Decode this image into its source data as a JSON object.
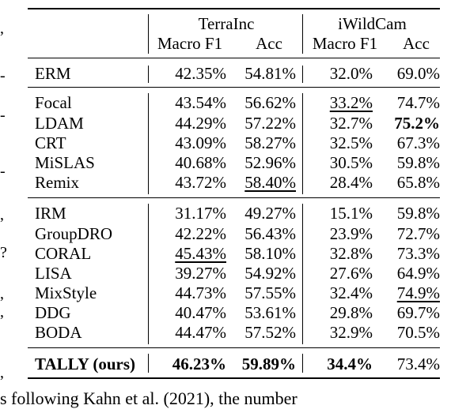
{
  "header": {
    "group1": "TerraInc",
    "group2": "iWildCam",
    "col1": "Macro F1",
    "col2": "Acc",
    "col3": "Macro F1",
    "col4": "Acc"
  },
  "rows": [
    {
      "name": "ERM",
      "v1": "42.35%",
      "v2": "54.81%",
      "v3": "32.0%",
      "v4": "69.0%"
    },
    {
      "name": "Focal",
      "v1": "43.54%",
      "v2": "56.62%",
      "v3": "33.2%",
      "v4": "74.7%"
    },
    {
      "name": "LDAM",
      "v1": "44.29%",
      "v2": "57.22%",
      "v3": "32.7%",
      "v4": "75.2%"
    },
    {
      "name": "CRT",
      "v1": "43.09%",
      "v2": "58.27%",
      "v3": "32.5%",
      "v4": "67.3%"
    },
    {
      "name": "MiSLAS",
      "v1": "40.68%",
      "v2": "52.96%",
      "v3": "30.5%",
      "v4": "59.8%"
    },
    {
      "name": "Remix",
      "v1": "43.72%",
      "v2": "58.40%",
      "v3": "28.4%",
      "v4": "65.8%"
    },
    {
      "name": "IRM",
      "v1": "31.17%",
      "v2": "49.27%",
      "v3": "15.1%",
      "v4": "59.8%"
    },
    {
      "name": "GroupDRO",
      "v1": "42.22%",
      "v2": "56.43%",
      "v3": "23.9%",
      "v4": "72.7%"
    },
    {
      "name": "CORAL",
      "v1": "45.43%",
      "v2": "58.10%",
      "v3": "32.8%",
      "v4": "73.3%"
    },
    {
      "name": "LISA",
      "v1": "39.27%",
      "v2": "54.92%",
      "v3": "27.6%",
      "v4": "64.9%"
    },
    {
      "name": "MixStyle",
      "v1": "44.73%",
      "v2": "57.55%",
      "v3": "32.4%",
      "v4": "74.9%"
    },
    {
      "name": "DDG",
      "v1": "40.47%",
      "v2": "53.61%",
      "v3": "29.8%",
      "v4": "69.7%"
    },
    {
      "name": "BODA",
      "v1": "44.47%",
      "v2": "57.52%",
      "v3": "32.9%",
      "v4": "70.5%"
    },
    {
      "name": "TALLY (ours)",
      "v1": "46.23%",
      "v2": "59.89%",
      "v3": "34.4%",
      "v4": "73.4%"
    }
  ],
  "margin_marks": [
    ",",
    "-",
    "-",
    "-",
    ",",
    "?",
    ",",
    ",",
    ","
  ],
  "bottom_fragment": "s following Kahn et al. (2021), the number"
}
